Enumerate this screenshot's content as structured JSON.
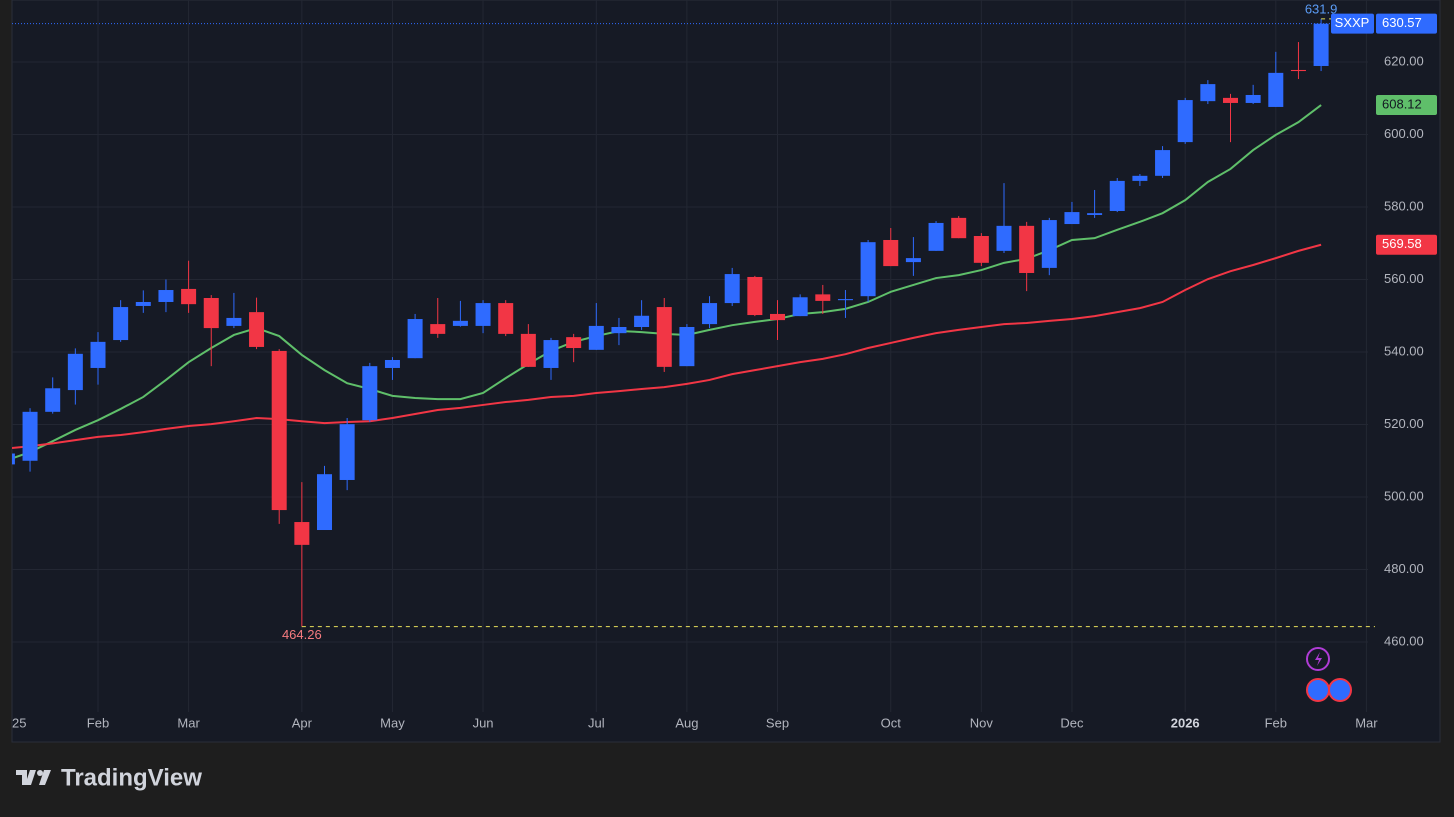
{
  "chart_data": {
    "type": "candlestick",
    "symbol": "SXXP",
    "brand": "TradingView",
    "categories": [
      "25",
      null,
      null,
      null,
      "Feb",
      null,
      null,
      null,
      "Mar",
      null,
      null,
      null,
      null,
      "Apr",
      null,
      null,
      null,
      "May",
      null,
      null,
      null,
      "Jun",
      null,
      null,
      null,
      null,
      "Jul",
      null,
      null,
      null,
      "Aug",
      null,
      null,
      null,
      "Sep",
      null,
      null,
      null,
      null,
      "Oct",
      null,
      null,
      null,
      "Nov",
      null,
      null,
      null,
      "Dec",
      null,
      null,
      null,
      null,
      "2026",
      null,
      null,
      null,
      "Feb",
      null,
      null,
      null,
      "Mar"
    ],
    "open": [
      509,
      510,
      523.5,
      529.5,
      535.6,
      543.3,
      552.7,
      553.8,
      557.4,
      554.9,
      547.2,
      551,
      540.3,
      493.1,
      490.9,
      504.7,
      521.2,
      535.6,
      538.3,
      547.7,
      547.2,
      547.2,
      553.5,
      545,
      535.6,
      544.1,
      540.6,
      545.2,
      546.9,
      552.4,
      536.1,
      547.7,
      553.5,
      560.7,
      550.5,
      549.9,
      555.9,
      554.3,
      555.4,
      570.9,
      564.8,
      567.9,
      577,
      572,
      567.9,
      574.8,
      563.2,
      575.3,
      577.8,
      578.9,
      587.2,
      588.6,
      597.9,
      609.2,
      610.1,
      608.7,
      607.6,
      617.8,
      618.9,
      null,
      null
    ],
    "high": [
      513,
      524.5,
      533,
      541,
      545.5,
      554.3,
      557,
      560,
      565.18,
      555.7,
      556.3,
      555,
      540.8,
      504.1,
      508.6,
      521.8,
      537,
      538.6,
      550.5,
      554.9,
      554.1,
      554.3,
      554.3,
      547.7,
      543.9,
      545,
      553.5,
      549.4,
      554.3,
      554.9,
      547.7,
      555.4,
      563.2,
      561,
      554.3,
      555.9,
      558.5,
      557.1,
      570.9,
      574.2,
      571.7,
      576.1,
      577.5,
      572.8,
      586.6,
      575.9,
      577,
      581.4,
      584.7,
      588,
      589.1,
      596.8,
      610.1,
      615,
      611.2,
      613.7,
      622.8,
      625.5,
      631.9,
      null,
      null
    ],
    "low": [
      507,
      507,
      523,
      525.5,
      531,
      542.8,
      550.8,
      551,
      550.8,
      536.1,
      546.6,
      540.8,
      492.6,
      464.26,
      490.9,
      501.9,
      520.7,
      532.3,
      538.3,
      543.9,
      547,
      545.2,
      544.4,
      535.9,
      532.3,
      537.2,
      540.6,
      541.9,
      546.1,
      534.5,
      536.1,
      546.6,
      552.7,
      549.9,
      543.3,
      549.9,
      550.5,
      549.4,
      553.8,
      563.7,
      561,
      567.9,
      571.4,
      563.7,
      567.3,
      556.8,
      561.2,
      575.3,
      577,
      578.6,
      585.8,
      588,
      597.4,
      608.4,
      597.9,
      608.4,
      607.6,
      615.3,
      617.5,
      null,
      null
    ],
    "close": [
      512,
      523.5,
      530,
      539.5,
      542.8,
      552.4,
      553.8,
      557.1,
      553.2,
      546.6,
      549.4,
      541.4,
      496.4,
      486.8,
      506.3,
      520.1,
      536.1,
      537.8,
      549.1,
      545,
      548.6,
      553.5,
      545,
      535.9,
      543.3,
      541.1,
      547.2,
      546.9,
      550,
      535.9,
      546.9,
      553.5,
      561.5,
      550.2,
      548.8,
      555.1,
      554.1,
      554.6,
      570.3,
      563.7,
      565.9,
      575.6,
      571.4,
      564.6,
      574.8,
      561.8,
      576.4,
      578.6,
      578.3,
      587.2,
      588.6,
      595.7,
      609.5,
      613.9,
      608.7,
      610.9,
      617,
      617.5,
      630.57,
      null,
      null
    ],
    "up_color": "#2f6bff",
    "down_color": "#f23645",
    "series": [
      {
        "color": "#5fbf6a",
        "values": [
          510.2,
          512.4,
          515.4,
          518.5,
          521.2,
          524.3,
          527.6,
          532.3,
          537.2,
          541.1,
          544.7,
          546.6,
          544.4,
          539.2,
          535,
          531.4,
          529.8,
          527.9,
          527.3,
          527,
          527,
          528.7,
          532.8,
          536.7,
          540.3,
          542.8,
          544.4,
          545.8,
          545.5,
          545,
          544.7,
          546.1,
          547.4,
          548.3,
          549.1,
          550.5,
          551,
          551.9,
          553.8,
          556.6,
          558.5,
          560.4,
          561.2,
          562.6,
          564.6,
          565.7,
          568.1,
          570.9,
          571.4,
          573.7,
          575.9,
          578.3,
          581.9,
          586.9,
          590.5,
          595.7,
          599.9,
          603.4,
          608.12,
          null,
          null
        ]
      },
      {
        "color": "#f23645",
        "values": [
          513.4,
          514,
          514.8,
          515.7,
          516.6,
          517.1,
          517.9,
          518.8,
          519.6,
          520.1,
          520.9,
          521.8,
          521.5,
          520.9,
          520.4,
          520.7,
          520.9,
          521.8,
          522.9,
          524,
          524.6,
          525.4,
          526.2,
          526.8,
          527.6,
          527.9,
          528.7,
          529.2,
          529.8,
          530.3,
          531.2,
          532.3,
          533.9,
          535,
          536.1,
          537.2,
          538.1,
          539.4,
          541.1,
          542.5,
          543.9,
          545.2,
          546.1,
          546.9,
          547.7,
          548,
          548.6,
          549.1,
          549.9,
          551,
          552.1,
          553.8,
          557.1,
          560.1,
          562.3,
          564,
          565.9,
          567.9,
          569.58,
          null,
          null
        ]
      }
    ],
    "ylim": [
      440.7,
      637.1
    ],
    "yticks": [
      {
        "value": 460,
        "label": "460.00"
      },
      {
        "value": 480,
        "label": "480.00"
      },
      {
        "value": 500,
        "label": "500.00"
      },
      {
        "value": 520,
        "label": "520.00"
      },
      {
        "value": 540,
        "label": "540.00"
      },
      {
        "value": 560,
        "label": "560.00"
      },
      {
        "value": 580,
        "label": "580.00"
      },
      {
        "value": 600,
        "label": "600.00"
      },
      {
        "value": 620,
        "label": "620.00"
      }
    ],
    "grid": true,
    "bold_categories": [
      "2026"
    ]
  }
}
